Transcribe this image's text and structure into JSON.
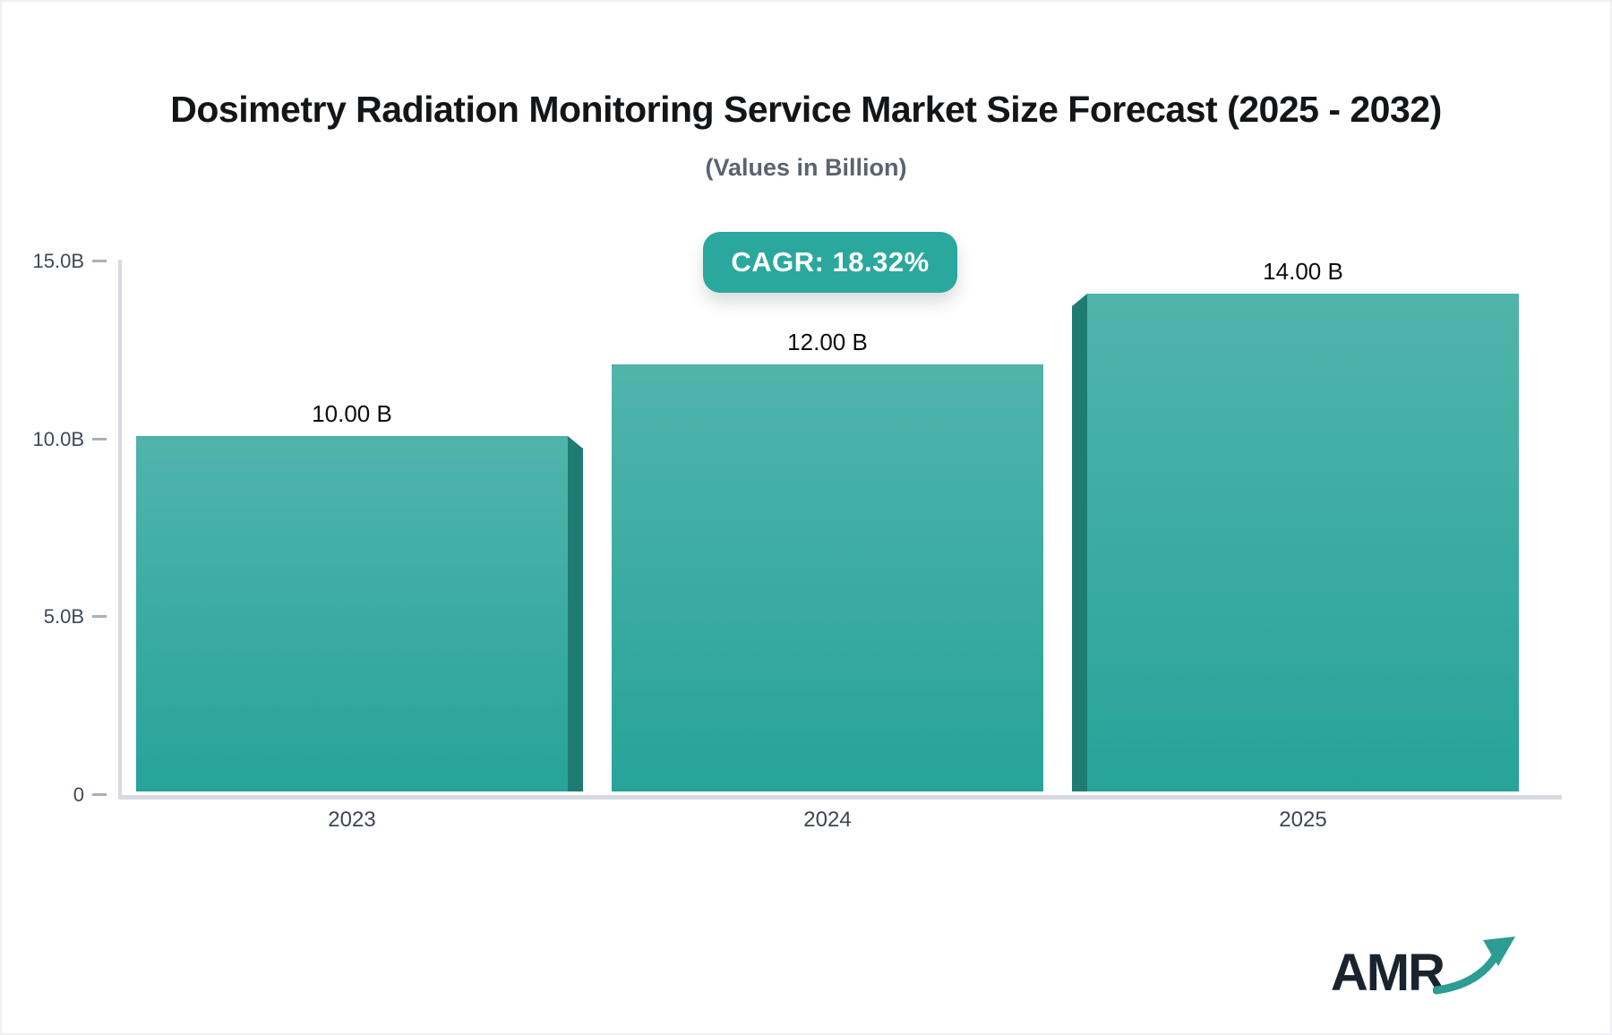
{
  "chart_data": {
    "type": "bar",
    "title": "Dosimetry Radiation Monitoring Service Market Size Forecast (2025 - 2032)",
    "subtitle": "(Values in Billion)",
    "cagr_label": "CAGR: 18.32%",
    "unit": "Billion",
    "categories": [
      "2023",
      "2024",
      "2025"
    ],
    "values": [
      10.0,
      12.0,
      14.0
    ],
    "value_labels": [
      "10.00 B",
      "12.00 B",
      "14.00 B"
    ],
    "ylim": [
      0,
      15
    ],
    "yticks": [
      {
        "value": 15,
        "label": "15.0B"
      },
      {
        "value": 10,
        "label": "10.0B"
      },
      {
        "value": 5,
        "label": "5.0B"
      },
      {
        "value": 0,
        "label": "0"
      }
    ],
    "grid": false,
    "legend_position": "none",
    "colors": {
      "bar_gradient_top": "#50B4AB",
      "bar_gradient_bottom": "#27A399",
      "bar_side": "#1F7C74",
      "badge_bg": "#2BA89D",
      "badge_text": "#FFFFFF",
      "axis_line": "#D7DADF",
      "tick_label": "#3E4957",
      "value_label": "#0B0D0F",
      "title": "#131619",
      "subtitle": "#5A646F",
      "logo_text": "#1A242F",
      "logo_arrow": "#2C9C94"
    }
  },
  "logo": {
    "text": "AMR",
    "arrow_icon": "trending-up-arrow"
  }
}
